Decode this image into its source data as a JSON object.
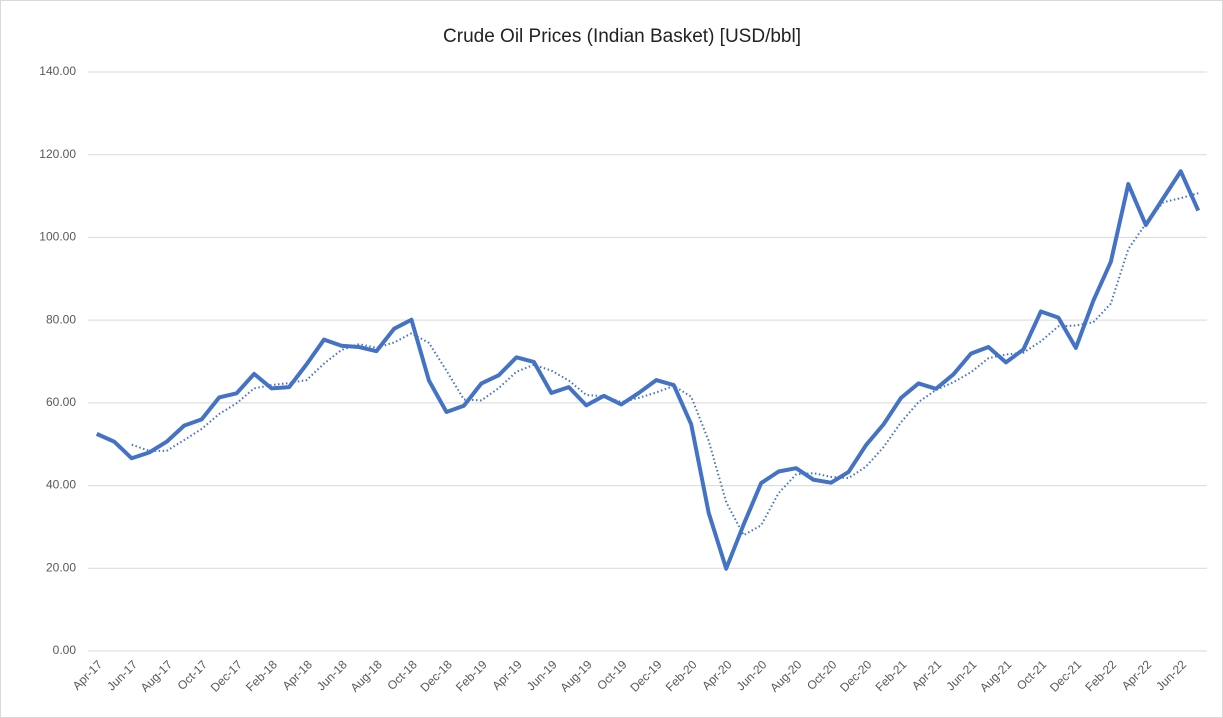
{
  "chart_data": {
    "type": "line",
    "title": "Crude Oil Prices (Indian Basket) [USD/bbl]",
    "categories": [
      "Apr-17",
      null,
      "Jun-17",
      null,
      "Aug-17",
      null,
      "Oct-17",
      null,
      "Dec-17",
      null,
      "Feb-18",
      null,
      "Apr-18",
      null,
      "Jun-18",
      null,
      "Aug-18",
      null,
      "Oct-18",
      null,
      "Dec-18",
      null,
      "Feb-19",
      null,
      "Apr-19",
      null,
      "Jun-19",
      null,
      "Aug-19",
      null,
      "Oct-19",
      null,
      "Dec-19",
      null,
      "Feb-20",
      null,
      "Apr-20",
      null,
      "Jun-20",
      null,
      "Aug-20",
      null,
      "Oct-20",
      null,
      "Dec-20",
      null,
      "Feb-21",
      null,
      "Apr-21",
      null,
      "Jun-21",
      null,
      "Aug-21",
      null,
      "Oct-21",
      null,
      "Dec-21",
      null,
      "Feb-22",
      null,
      "Apr-22",
      null,
      "Jun-22",
      null
    ],
    "series": [
      {
        "color": "#4472c4",
        "style": "solid",
        "values": [
          52.5,
          50.6,
          46.6,
          48.0,
          50.6,
          54.5,
          56.0,
          61.3,
          62.3,
          67.0,
          63.5,
          63.8,
          69.3,
          75.3,
          73.8,
          73.5,
          72.5,
          77.9,
          80.1,
          65.4,
          57.8,
          59.3,
          64.7,
          66.7,
          71.0,
          69.9,
          62.4,
          63.8,
          59.4,
          61.7,
          59.6,
          62.4,
          65.5,
          64.3,
          54.8,
          33.4,
          19.9,
          30.6,
          40.6,
          43.4,
          44.2,
          41.4,
          40.7,
          43.3,
          49.8,
          54.8,
          61.2,
          64.7,
          63.4,
          66.9,
          71.9,
          73.5,
          69.8,
          72.9,
          82.1,
          80.6,
          73.3,
          84.7,
          94.1,
          112.9,
          103.0,
          109.5,
          116.0,
          106.5
        ]
      },
      {
        "color": "#4472c4",
        "style": "dotted",
        "values": [
          null,
          null,
          49.9,
          48.4,
          48.4,
          51.0,
          53.7,
          57.3,
          59.9,
          63.5,
          64.3,
          64.8,
          65.5,
          69.5,
          72.8,
          74.2,
          73.3,
          74.6,
          76.8,
          74.5,
          67.8,
          60.8,
          60.6,
          63.6,
          67.5,
          69.2,
          67.8,
          65.4,
          61.9,
          61.6,
          60.2,
          61.2,
          62.5,
          64.1,
          61.5,
          50.8,
          36.0,
          28.0,
          30.4,
          38.2,
          42.7,
          43.0,
          42.1,
          41.8,
          44.6,
          49.3,
          55.3,
          60.2,
          63.1,
          65.0,
          67.4,
          70.8,
          71.7,
          72.1,
          74.9,
          78.5,
          78.7,
          79.5,
          84.0,
          97.2,
          103.3,
          108.5,
          109.5,
          110.7
        ]
      }
    ],
    "ylim": [
      0,
      140
    ],
    "yticks": [
      {
        "value": 0,
        "label": "0.00"
      },
      {
        "value": 20,
        "label": "20.00"
      },
      {
        "value": 40,
        "label": "40.00"
      },
      {
        "value": 60,
        "label": "60.00"
      },
      {
        "value": 80,
        "label": "80.00"
      },
      {
        "value": 100,
        "label": "100.00"
      },
      {
        "value": 120,
        "label": "120.00"
      },
      {
        "value": 140,
        "label": "140.00"
      }
    ],
    "grid": true
  }
}
